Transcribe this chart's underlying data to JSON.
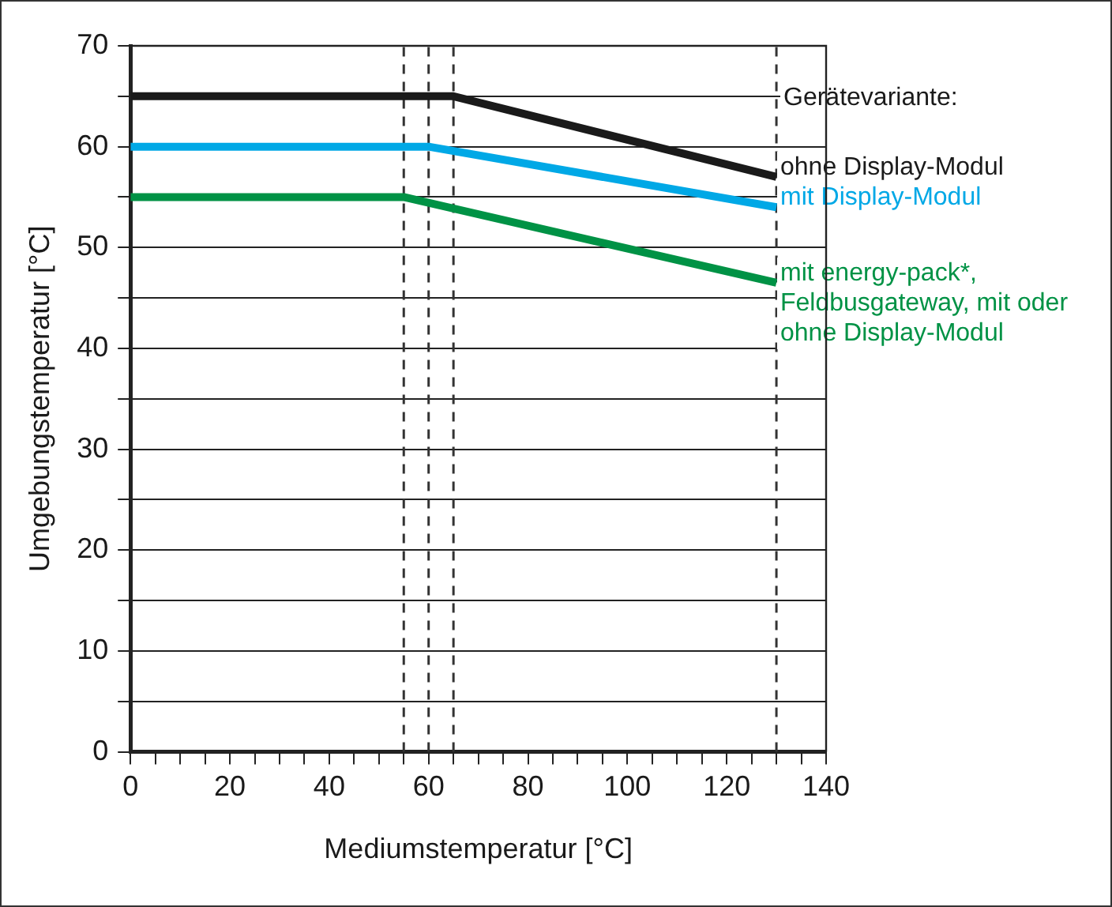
{
  "chart_data": {
    "type": "line",
    "xlabel": "Mediumstemperatur [°C]",
    "ylabel": "Umgebungstemperatur [°C]",
    "legend_title": "Gerätevariante:",
    "series": [
      {
        "name": "ohne Display-Modul",
        "color": "#1a1a1a",
        "x": [
          0,
          65,
          130
        ],
        "values": [
          65,
          65,
          57
        ]
      },
      {
        "name": "mit Display-Modul",
        "color": "#00a8e6",
        "x": [
          0,
          60,
          130
        ],
        "values": [
          60,
          60,
          54
        ]
      },
      {
        "name": "mit energy-pack*, Feldbusgateway, mit oder ohne Display-Modul",
        "color": "#009245",
        "x": [
          0,
          55,
          130
        ],
        "values": [
          55,
          55,
          46.5
        ]
      }
    ],
    "xlim": [
      0,
      140
    ],
    "xticks": [
      0,
      {
        "value": 5,
        "label": null
      },
      {
        "value": 10,
        "label": null
      },
      {
        "value": 15,
        "label": null
      },
      20,
      {
        "value": 25,
        "label": null
      },
      {
        "value": 30,
        "label": null
      },
      {
        "value": 35,
        "label": null
      },
      40,
      {
        "value": 45,
        "label": null
      },
      {
        "value": 50,
        "label": null
      },
      {
        "value": 55,
        "label": null
      },
      60,
      {
        "value": 65,
        "label": null
      },
      {
        "value": 70,
        "label": null
      },
      {
        "value": 75,
        "label": null
      },
      80,
      {
        "value": 85,
        "label": null
      },
      {
        "value": 90,
        "label": null
      },
      {
        "value": 95,
        "label": null
      },
      100,
      {
        "value": 105,
        "label": null
      },
      {
        "value": 110,
        "label": null
      },
      {
        "value": 115,
        "label": null
      },
      120,
      {
        "value": 125,
        "label": null
      },
      {
        "value": 130,
        "label": null
      },
      {
        "value": 135,
        "label": null
      },
      140
    ],
    "ylim": [
      0,
      70
    ],
    "yticks": [
      0,
      {
        "value": 5,
        "label": null
      },
      10,
      {
        "value": 15,
        "label": null
      },
      20,
      {
        "value": 25,
        "label": null
      },
      30,
      {
        "value": 35,
        "label": null
      },
      40,
      {
        "value": 45,
        "label": null
      },
      50,
      {
        "value": 55,
        "label": null
      },
      60,
      {
        "value": 65,
        "label": null
      },
      70
    ],
    "ref_lines": [
      {
        "axis": "x",
        "value": 55,
        "line_style": "dashed",
        "color": "#333333"
      },
      {
        "axis": "x",
        "value": 60,
        "line_style": "dashed",
        "color": "#333333"
      },
      {
        "axis": "x",
        "value": 65,
        "line_style": "dashed",
        "color": "#333333"
      },
      {
        "axis": "x",
        "value": 130,
        "line_style": "dashed",
        "color": "#333333"
      }
    ],
    "grid": "y",
    "legend": "right",
    "marker": "none",
    "line_style": "solid"
  }
}
